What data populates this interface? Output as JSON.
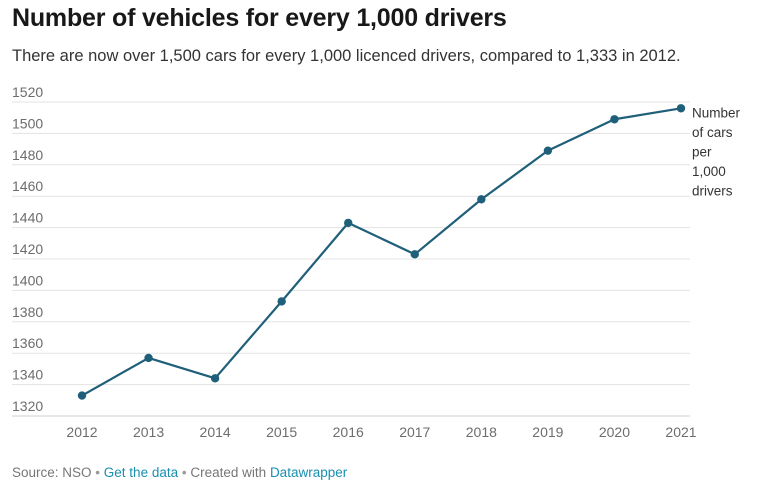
{
  "title": "Number of vehicles for every 1,000 drivers",
  "subtitle": "There are now over 1,500 cars for every 1,000 licenced drivers, compared to 1,333 in 2012.",
  "footer": {
    "source_text": "Source: NSO",
    "separator": "•",
    "get_data_label": "Get the data",
    "created_with_text": "Created with",
    "datawrapper_label": "Datawrapper"
  },
  "colors": {
    "line": "#1f5f79",
    "grid": "#e3e3e3",
    "tick_text": "#6d6d6d",
    "link": "#1a8fb0"
  },
  "chart_data": {
    "type": "line",
    "title": "Number of vehicles for every 1,000 drivers",
    "xlabel": "",
    "ylabel": "",
    "x": [
      "2012",
      "2013",
      "2014",
      "2015",
      "2016",
      "2017",
      "2018",
      "2019",
      "2020",
      "2021"
    ],
    "series": [
      {
        "name": "Number of cars per 1,000 drivers",
        "name_lines": [
          "Number",
          "of cars",
          "per",
          "1,000",
          "drivers"
        ],
        "values": [
          1333,
          1357,
          1344,
          1393,
          1443,
          1423,
          1458,
          1489,
          1509,
          1516
        ]
      }
    ],
    "yticks": [
      1320,
      1340,
      1360,
      1380,
      1400,
      1420,
      1440,
      1460,
      1480,
      1500,
      1520
    ],
    "ylim": [
      1320,
      1520
    ],
    "grid": true,
    "markers": true
  }
}
